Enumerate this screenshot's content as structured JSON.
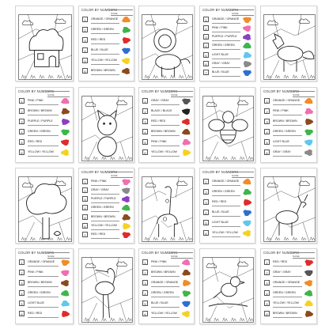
{
  "sheet_header": {
    "title": "COLOR BY NUMBERS",
    "subtitle": "NAME",
    "logo": "~~~"
  },
  "key_pages": [
    {
      "rows": [
        {
          "n": "1",
          "label": "ORANGE / ORANGE",
          "color": "#f28c28"
        },
        {
          "n": "2",
          "label": "GREEN / GREEN",
          "color": "#3fb54a"
        },
        {
          "n": "3",
          "label": "RED / RED",
          "color": "#e02b2b"
        },
        {
          "n": "4",
          "label": "BLUE / BLUE",
          "color": "#2d6fd1"
        },
        {
          "n": "5",
          "label": "YELLOW / YELLOW",
          "color": "#f4d222"
        },
        {
          "n": "6",
          "label": "BROWN / BROWN",
          "color": "#8b4a1e"
        }
      ]
    },
    {
      "rows": [
        {
          "n": "1",
          "label": "ORANGE / ORANGE",
          "color": "#f28c28"
        },
        {
          "n": "2",
          "label": "PINK / PINK",
          "color": "#ef6fb0"
        },
        {
          "n": "3",
          "label": "PURPLE / PURPLE",
          "color": "#8d3fc1"
        },
        {
          "n": "4",
          "label": "GREEN / GREEN",
          "color": "#3fb54a"
        },
        {
          "n": "5",
          "label": "LIGHT BLUE",
          "color": "#5ec8ee"
        },
        {
          "n": "6",
          "label": "GRAY / GRAY",
          "color": "#8a8a8a"
        },
        {
          "n": "7",
          "label": "BLUE / BLUE",
          "color": "#2d6fd1"
        }
      ]
    },
    {
      "rows": [
        {
          "n": "1",
          "label": "PINK / PINK",
          "color": "#ef6fb0"
        },
        {
          "n": "2",
          "label": "BROWN / BROWN",
          "color": "#8b4a1e"
        },
        {
          "n": "3",
          "label": "PURPLE / PURPLE",
          "color": "#8d3fc1"
        },
        {
          "n": "4",
          "label": "GREEN / GREEN",
          "color": "#3fb54a"
        },
        {
          "n": "5",
          "label": "RED / RED",
          "color": "#e02b2b"
        },
        {
          "n": "6",
          "label": "YELLOW / YELLOW",
          "color": "#f4d222"
        }
      ]
    },
    {
      "rows": [
        {
          "n": "1",
          "label": "GRAY / GRAY",
          "color": "#555555"
        },
        {
          "n": "2",
          "label": "BLACK / BLACK",
          "color": "#222222"
        },
        {
          "n": "3",
          "label": "RED / RED",
          "color": "#e02b2b"
        },
        {
          "n": "4",
          "label": "BROWN / BROWN",
          "color": "#8b4a1e"
        },
        {
          "n": "5",
          "label": "PINK / PINK",
          "color": "#ef6fb0"
        },
        {
          "n": "6",
          "label": "YELLOW / YELLOW",
          "color": "#f4d222"
        }
      ]
    },
    {
      "rows": [
        {
          "n": "1",
          "label": "ORANGE / ORANGE",
          "color": "#f28c28"
        },
        {
          "n": "2",
          "label": "PINK / PINK",
          "color": "#ef6fb0"
        },
        {
          "n": "3",
          "label": "BROWN / BROWN",
          "color": "#8b4a1e"
        },
        {
          "n": "4",
          "label": "GREEN / GREEN",
          "color": "#3fb54a"
        },
        {
          "n": "5",
          "label": "LIGHT BLUE",
          "color": "#5ec8ee"
        },
        {
          "n": "6",
          "label": "GRAY / GRAY",
          "color": "#8a8a8a"
        }
      ]
    },
    {
      "rows": [
        {
          "n": "1",
          "label": "PINK / PINK",
          "color": "#ef6fb0"
        },
        {
          "n": "2",
          "label": "GRAY / GRAY",
          "color": "#8a8a8a"
        },
        {
          "n": "3",
          "label": "PURPLE / PURPLE",
          "color": "#8d3fc1"
        },
        {
          "n": "4",
          "label": "GREEN / GREEN",
          "color": "#3fb54a"
        },
        {
          "n": "5",
          "label": "BROWN / BROWN",
          "color": "#8b4a1e"
        },
        {
          "n": "6",
          "label": "YELLOW / YELLOW",
          "color": "#f4d222"
        },
        {
          "n": "7",
          "label": "RED / RED",
          "color": "#e02b2b"
        }
      ]
    },
    {
      "rows": [
        {
          "n": "1",
          "label": "ORANGE / ORANGE",
          "color": "#f28c28"
        },
        {
          "n": "2",
          "label": "GREEN / GREEN",
          "color": "#3fb54a"
        },
        {
          "n": "3",
          "label": "RED / RED",
          "color": "#e02b2b"
        },
        {
          "n": "4",
          "label": "BLUE / BLUE",
          "color": "#2d6fd1"
        },
        {
          "n": "5",
          "label": "LIGHT BLUE",
          "color": "#5ec8ee"
        },
        {
          "n": "6",
          "label": "YELLOW / YELLOW",
          "color": "#f4d222"
        }
      ]
    },
    {
      "rows": [
        {
          "n": "1",
          "label": "ORANGE / ORANGE",
          "color": "#f28c28"
        },
        {
          "n": "2",
          "label": "PINK / PINK",
          "color": "#ef6fb0"
        },
        {
          "n": "3",
          "label": "BROWN / BROWN",
          "color": "#8b4a1e"
        },
        {
          "n": "4",
          "label": "GREEN / GREEN",
          "color": "#3fb54a"
        },
        {
          "n": "5",
          "label": "LIGHT BLUE",
          "color": "#5ec8ee"
        },
        {
          "n": "6",
          "label": "RED / RED",
          "color": "#e02b2b"
        }
      ]
    },
    {
      "rows": [
        {
          "n": "1",
          "label": "PINK / PINK",
          "color": "#ef6fb0"
        },
        {
          "n": "2",
          "label": "BROWN / BROWN",
          "color": "#8b4a1e"
        },
        {
          "n": "3",
          "label": "ORANGE / ORANGE",
          "color": "#f28c28"
        },
        {
          "n": "4",
          "label": "GREEN / GREEN",
          "color": "#3fb54a"
        },
        {
          "n": "5",
          "label": "BLUE / BLUE",
          "color": "#2d6fd1"
        },
        {
          "n": "6",
          "label": "YELLOW / YELLOW",
          "color": "#f4d222"
        }
      ]
    },
    {
      "rows": [
        {
          "n": "1",
          "label": "RED / RED",
          "color": "#e02b2b"
        },
        {
          "n": "2",
          "label": "GRAY / GRAY",
          "color": "#555555"
        },
        {
          "n": "3",
          "label": "ORANGE / ORANGE",
          "color": "#f28c28"
        },
        {
          "n": "4",
          "label": "GREEN / GREEN",
          "color": "#3fb54a"
        },
        {
          "n": "5",
          "label": "YELLOW / YELLOW",
          "color": "#f4d222"
        },
        {
          "n": "6",
          "label": "BROWN / BROWN",
          "color": "#8b4a1e"
        }
      ]
    }
  ],
  "art_pages": [
    {
      "subject": "house"
    },
    {
      "subject": "lion"
    },
    {
      "subject": "fox"
    },
    {
      "subject": "cat"
    },
    {
      "subject": "bee"
    },
    {
      "subject": "tree"
    },
    {
      "subject": "giraffe"
    },
    {
      "subject": "deer"
    },
    {
      "subject": "stork"
    },
    {
      "subject": "bird"
    }
  ]
}
